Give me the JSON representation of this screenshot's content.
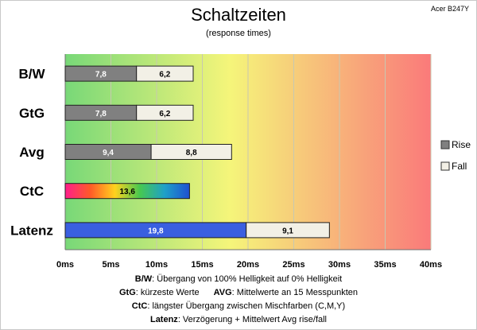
{
  "corner_label": "Acer B247Y",
  "chart_data": {
    "type": "bar",
    "orientation": "horizontal",
    "stacked": true,
    "title": "Schaltzeiten",
    "subtitle": "(response times)",
    "categories": [
      "B/W",
      "GtG",
      "Avg",
      "CtC",
      "Latenz"
    ],
    "series": [
      {
        "name": "Rise",
        "color": "#808080",
        "values": [
          7.8,
          7.8,
          9.4,
          null,
          19.8
        ]
      },
      {
        "name": "Fall",
        "color": "#f2f0e6",
        "values": [
          6.2,
          6.2,
          8.8,
          null,
          9.1
        ]
      }
    ],
    "single_bars": [
      {
        "category": "CtC",
        "value": 13.6,
        "label": "13,6",
        "fill": "rainbow-gradient"
      }
    ],
    "latenz_rise_color": "#3a5fe0",
    "data_labels": {
      "Rise": [
        "7,8",
        "7,8",
        "9,4",
        null,
        "19,8"
      ],
      "Fall": [
        "6,2",
        "6,2",
        "8,8",
        null,
        "9,1"
      ]
    },
    "xlim": [
      0,
      40
    ],
    "xticks": [
      0,
      5,
      10,
      15,
      20,
      25,
      30,
      35,
      40
    ],
    "xtick_labels": [
      "0ms",
      "5ms",
      "10ms",
      "15ms",
      "20ms",
      "25ms",
      "30ms",
      "35ms",
      "40ms"
    ],
    "background_gradient": [
      "#78d878",
      "#f5f57a",
      "#fa7a7a"
    ],
    "grid": true,
    "legend_position": "right",
    "legend": [
      {
        "name": "Rise",
        "color": "#808080"
      },
      {
        "name": "Fall",
        "color": "#f2f0e6"
      }
    ]
  },
  "notes": [
    {
      "key": "B/W",
      "text": ":  Übergang von 100% Helligkeit auf 0% Helligkeit"
    },
    {
      "key": "GtG",
      "text": ": kürzeste  Werte",
      "key2": "AVG",
      "text2": ": Mittelwerte  an 15 Messpunkten"
    },
    {
      "key": "CtC",
      "text": ": längster Übergang  zwischen Mischfarben (C,M,Y)"
    },
    {
      "key": "Latenz",
      "text": ": Verzögerung  + Mittelwert Avg rise/fall"
    }
  ]
}
